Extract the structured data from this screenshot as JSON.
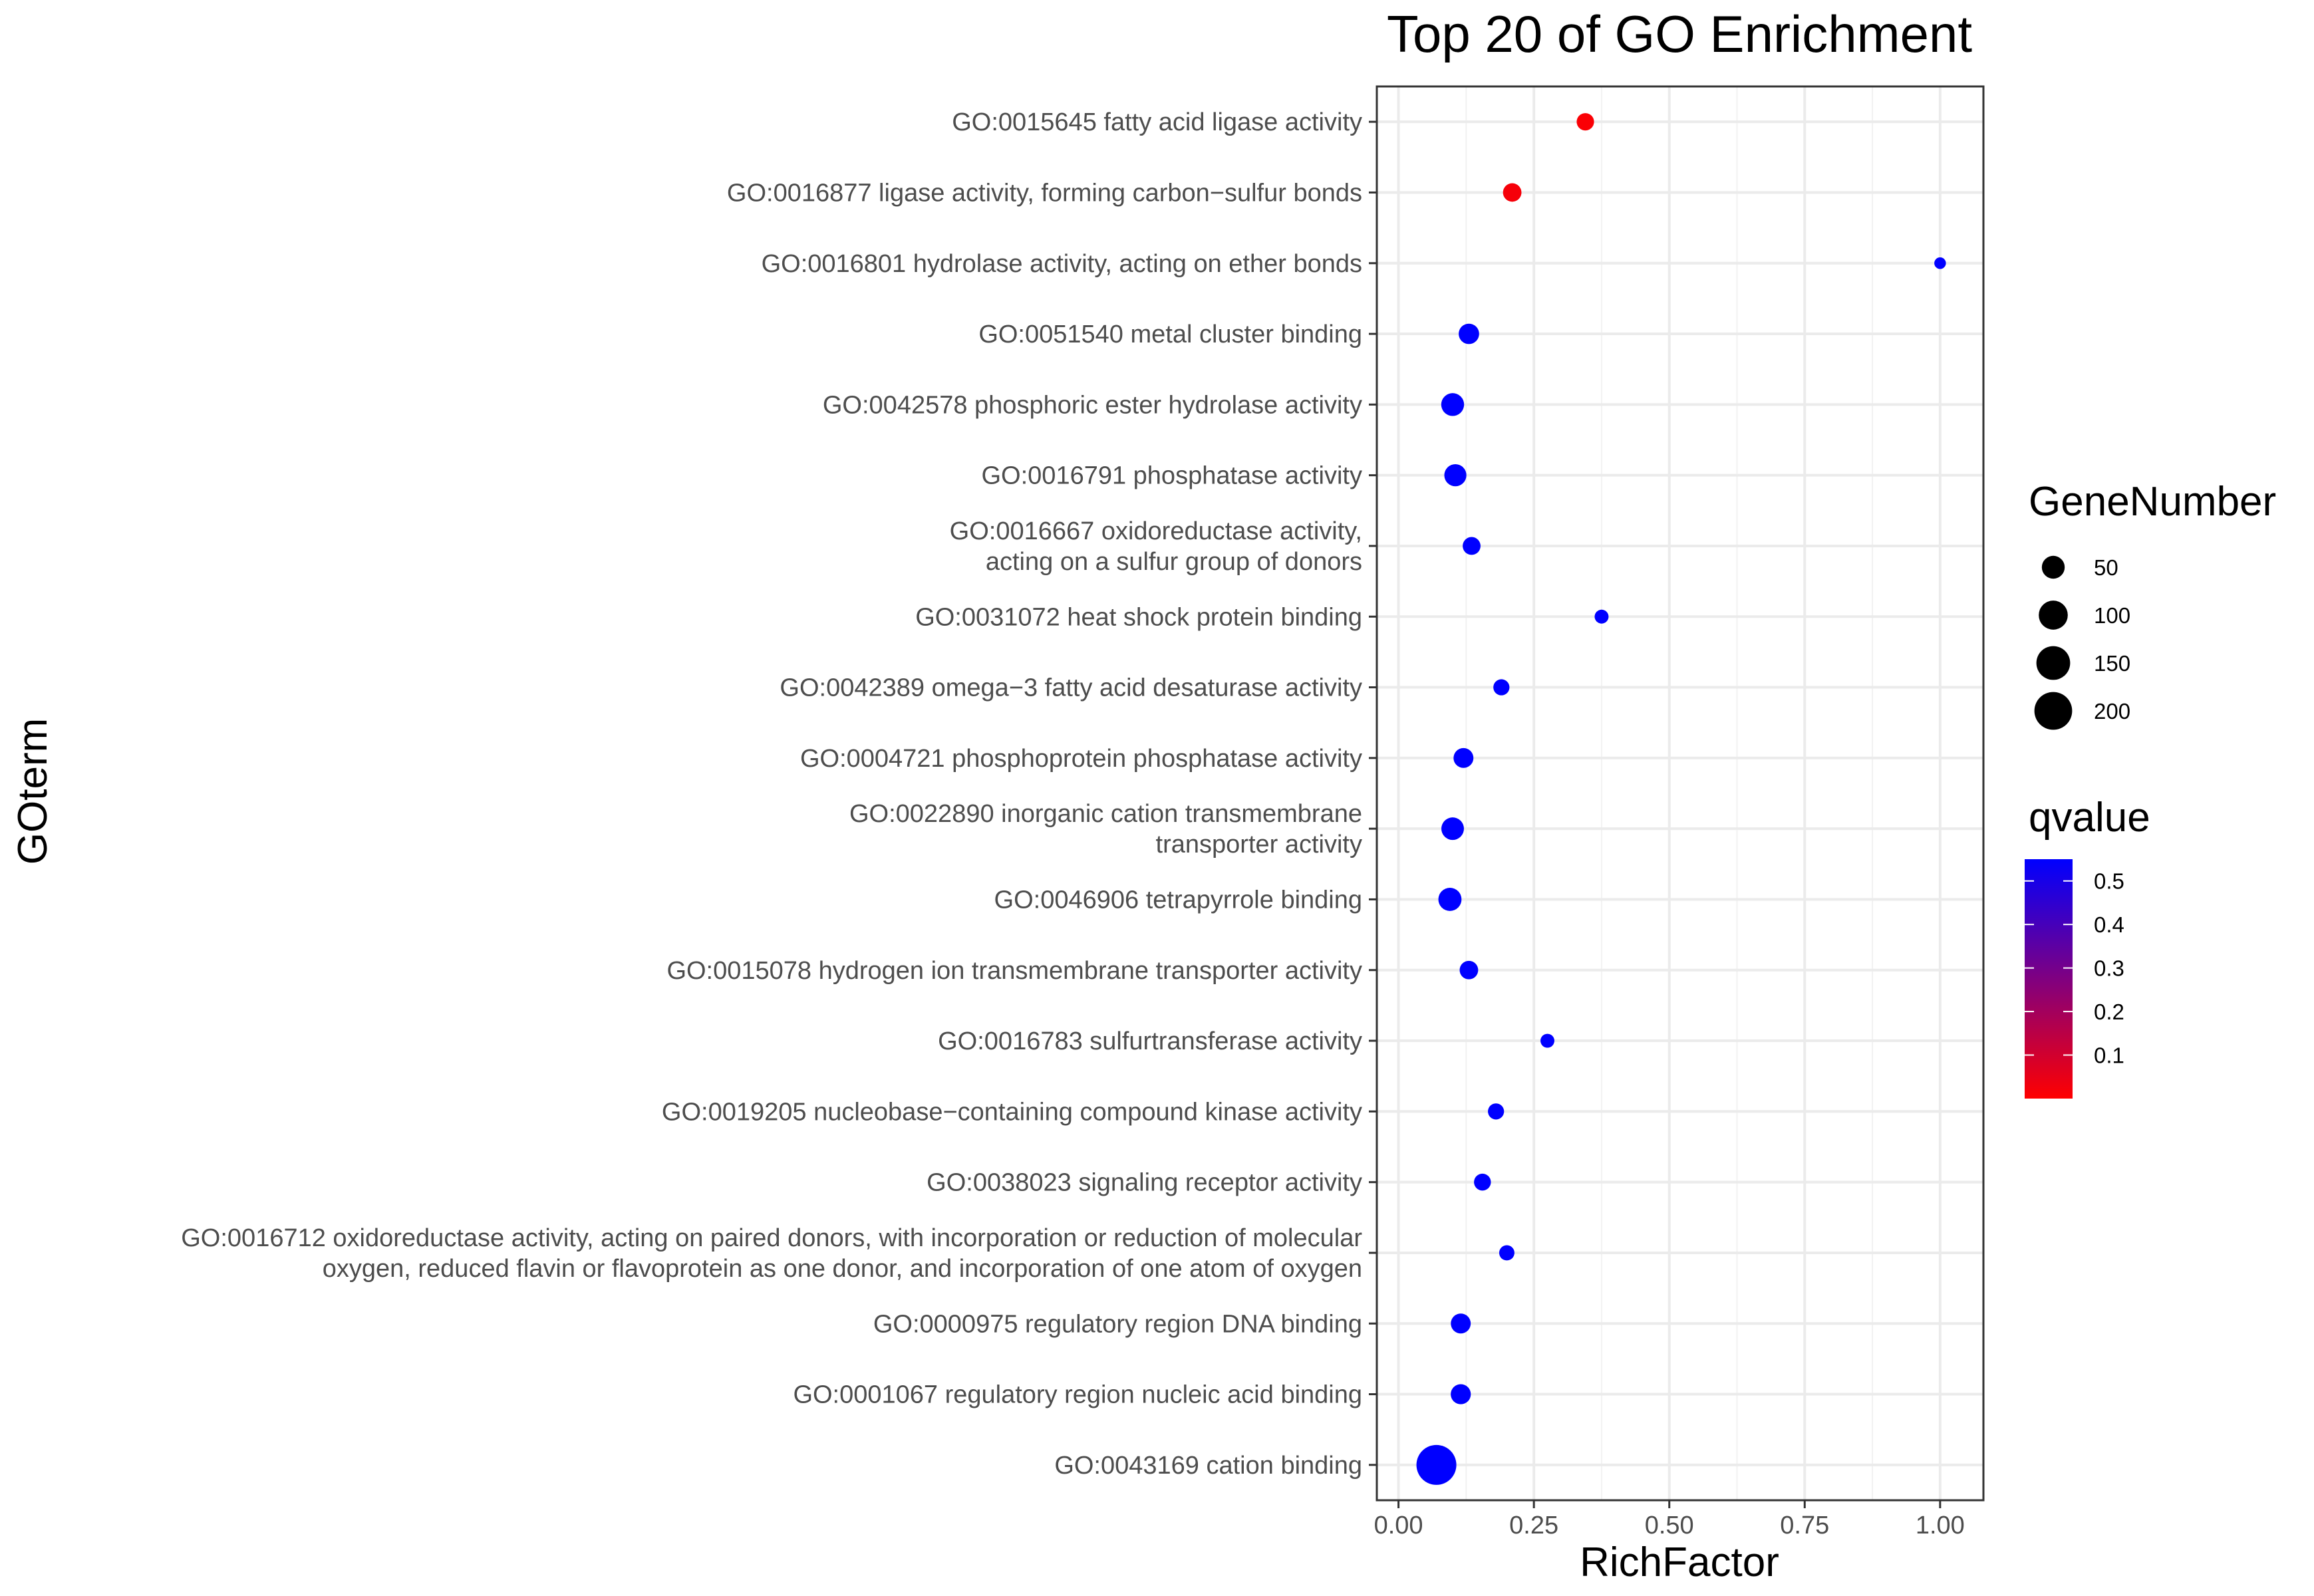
{
  "chart_data": {
    "type": "scatter",
    "title": "Top 20 of GO Enrichment",
    "xlabel": "RichFactor",
    "ylabel": "GOterm",
    "xlim": [
      -0.04,
      1.08
    ],
    "x_ticks": [
      "0.00",
      "0.25",
      "0.50",
      "0.75",
      "1.00"
    ],
    "x_tick_values": [
      0,
      0.25,
      0.5,
      0.75,
      1.0
    ],
    "grid": true,
    "color_scale": {
      "low": "#ff0000",
      "high": "#0000ff"
    },
    "points": [
      {
        "term": [
          "GO:0015645 fatty acid ligase activity"
        ],
        "rich_factor": 0.345,
        "gene_number": 20,
        "qvalue": 0.01
      },
      {
        "term": [
          "GO:0016877 ligase activity, forming carbon−sulfur bonds"
        ],
        "rich_factor": 0.21,
        "gene_number": 25,
        "qvalue": 0.02
      },
      {
        "term": [
          "GO:0016801 hydrolase activity, acting on ether bonds"
        ],
        "rich_factor": 1.0,
        "gene_number": 3,
        "qvalue": 0.55
      },
      {
        "term": [
          "GO:0051540 metal cluster binding"
        ],
        "rich_factor": 0.13,
        "gene_number": 35,
        "qvalue": 0.55
      },
      {
        "term": [
          "GO:0042578 phosphoric ester hydrolase activity"
        ],
        "rich_factor": 0.1,
        "gene_number": 50,
        "qvalue": 0.55
      },
      {
        "term": [
          "GO:0016791 phosphatase activity"
        ],
        "rich_factor": 0.105,
        "gene_number": 45,
        "qvalue": 0.55
      },
      {
        "term": [
          "GO:0016667 oxidoreductase activity,",
          "acting on a sulfur group of donors"
        ],
        "rich_factor": 0.135,
        "gene_number": 22,
        "qvalue": 0.55
      },
      {
        "term": [
          "GO:0031072 heat shock protein binding"
        ],
        "rich_factor": 0.375,
        "gene_number": 8,
        "qvalue": 0.55
      },
      {
        "term": [
          "GO:0042389 omega−3 fatty acid desaturase activity"
        ],
        "rich_factor": 0.19,
        "gene_number": 15,
        "qvalue": 0.55
      },
      {
        "term": [
          "GO:0004721 phosphoprotein phosphatase activity"
        ],
        "rich_factor": 0.12,
        "gene_number": 32,
        "qvalue": 0.55
      },
      {
        "term": [
          "GO:0022890 inorganic cation transmembrane",
          "transporter activity"
        ],
        "rich_factor": 0.1,
        "gene_number": 48,
        "qvalue": 0.55
      },
      {
        "term": [
          "GO:0046906 tetrapyrrole binding"
        ],
        "rich_factor": 0.095,
        "gene_number": 52,
        "qvalue": 0.55
      },
      {
        "term": [
          "GO:0015078 hydrogen ion transmembrane transporter activity"
        ],
        "rich_factor": 0.13,
        "gene_number": 25,
        "qvalue": 0.55
      },
      {
        "term": [
          "GO:0016783 sulfurtransferase activity"
        ],
        "rich_factor": 0.275,
        "gene_number": 8,
        "qvalue": 0.55
      },
      {
        "term": [
          "GO:0019205 nucleobase−containing compound kinase activity"
        ],
        "rich_factor": 0.18,
        "gene_number": 15,
        "qvalue": 0.55
      },
      {
        "term": [
          "GO:0038023 signaling receptor activity"
        ],
        "rich_factor": 0.155,
        "gene_number": 18,
        "qvalue": 0.55
      },
      {
        "term": [
          "GO:0016712 oxidoreductase activity, acting on paired donors, with incorporation or reduction of molecular",
          "oxygen, reduced flavin or flavoprotein as one donor, and incorporation of one atom of oxygen"
        ],
        "rich_factor": 0.2,
        "gene_number": 12,
        "qvalue": 0.55
      },
      {
        "term": [
          "GO:0000975 regulatory region DNA binding"
        ],
        "rich_factor": 0.115,
        "gene_number": 32,
        "qvalue": 0.55
      },
      {
        "term": [
          "GO:0001067 regulatory region nucleic acid binding"
        ],
        "rich_factor": 0.115,
        "gene_number": 33,
        "qvalue": 0.55
      },
      {
        "term": [
          "GO:0043169 cation binding"
        ],
        "rich_factor": 0.07,
        "gene_number": 230,
        "qvalue": 0.55
      }
    ],
    "legend_size": {
      "title": "GeneNumber",
      "entries": [
        {
          "label": "50",
          "value": 50
        },
        {
          "label": "100",
          "value": 100
        },
        {
          "label": "150",
          "value": 150
        },
        {
          "label": "200",
          "value": 200
        }
      ]
    },
    "legend_color": {
      "title": "qvalue",
      "range": [
        0.0,
        0.55
      ],
      "entries": [
        {
          "label": "0.5",
          "value": 0.5
        },
        {
          "label": "0.4",
          "value": 0.4
        },
        {
          "label": "0.3",
          "value": 0.3
        },
        {
          "label": "0.2",
          "value": 0.2
        },
        {
          "label": "0.1",
          "value": 0.1
        }
      ]
    }
  }
}
